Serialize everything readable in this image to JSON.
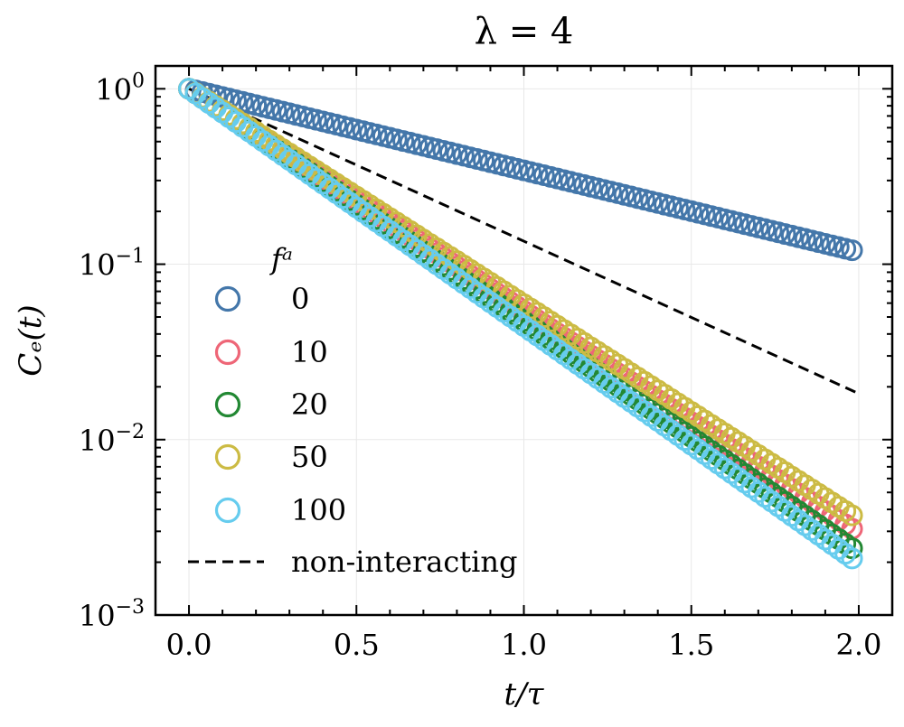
{
  "chart_data": {
    "type": "scatter",
    "title": "λ = 4",
    "xlabel": "t/τ",
    "ylabel": "Cₑ(t)",
    "xlim": [
      -0.1,
      2.1
    ],
    "ylim": [
      0.001,
      1.35
    ],
    "yscale": "log",
    "grid": true,
    "x_ticks": [
      0.0,
      0.5,
      1.0,
      1.5,
      2.0
    ],
    "x_tick_labels": [
      "0.0",
      "0.5",
      "1.0",
      "1.5",
      "2.0"
    ],
    "y_ticks": [
      1,
      0.1,
      0.01,
      0.001
    ],
    "y_tick_labels": [
      {
        "base": "10",
        "exp": "0"
      },
      {
        "base": "10",
        "exp": "−1"
      },
      {
        "base": "10",
        "exp": "−2"
      },
      {
        "base": "10",
        "exp": "−3"
      }
    ],
    "legend": {
      "title": "fᵃ",
      "position": "lower-left",
      "entries": [
        "0",
        "10",
        "20",
        "50",
        "100",
        "non-interacting"
      ]
    },
    "x_start": 0.0,
    "x_end": 1.98,
    "n_points": 100,
    "series": [
      {
        "name": "0",
        "color": "#4477AA",
        "marker": "open-circle",
        "y_start": 1.0,
        "y_end": 0.12
      },
      {
        "name": "10",
        "color": "#EE6677",
        "marker": "open-circle",
        "y_start": 1.0,
        "y_end": 0.0031
      },
      {
        "name": "20",
        "color": "#228833",
        "marker": "open-circle",
        "y_start": 1.0,
        "y_end": 0.0024
      },
      {
        "name": "50",
        "color": "#CCBB44",
        "marker": "open-circle",
        "y_start": 1.0,
        "y_end": 0.0037
      },
      {
        "name": "100",
        "color": "#66CCEE",
        "marker": "open-circle",
        "y_start": 1.0,
        "y_end": 0.0021
      }
    ],
    "reference_line": {
      "name": "non-interacting",
      "style": "dashed",
      "color": "#000000",
      "x": [
        0.0,
        2.0
      ],
      "y": [
        1.0,
        0.0183
      ]
    }
  }
}
